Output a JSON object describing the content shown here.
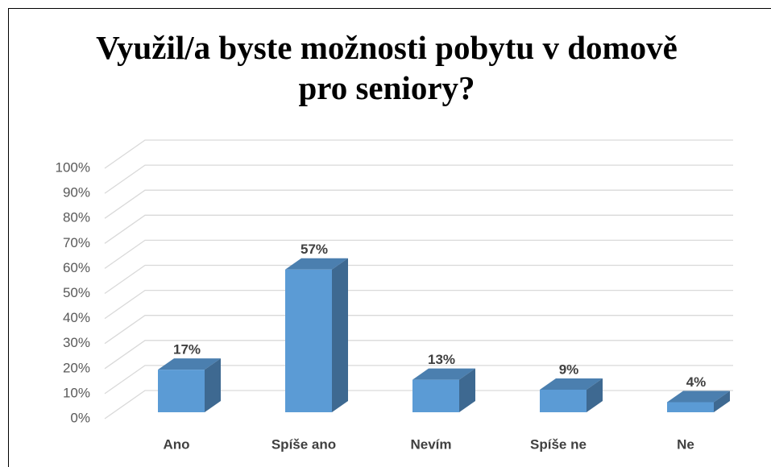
{
  "chart_data": {
    "type": "bar3d",
    "title": "Využil/a byste možnosti pobytu v domově pro seniory?",
    "categories": [
      "Ano",
      "Spíše ano",
      "Nevím",
      "Spíše ne",
      "Ne"
    ],
    "values": [
      17,
      57,
      13,
      9,
      4
    ],
    "value_labels": [
      "17%",
      "57%",
      "13%",
      "9%",
      "4%"
    ],
    "color": "#5b9bd5",
    "ylim": [
      0,
      100
    ],
    "yticks": [
      {
        "value": 0,
        "label": "0%"
      },
      {
        "value": 10,
        "label": "10%"
      },
      {
        "value": 20,
        "label": "20%"
      },
      {
        "value": 30,
        "label": "30%"
      },
      {
        "value": 40,
        "label": "40%"
      },
      {
        "value": 50,
        "label": "50%"
      },
      {
        "value": 60,
        "label": "60%"
      },
      {
        "value": 70,
        "label": "70%"
      },
      {
        "value": 80,
        "label": "80%"
      },
      {
        "value": 90,
        "label": "90%"
      },
      {
        "value": 100,
        "label": "100%"
      }
    ],
    "grid": true
  }
}
